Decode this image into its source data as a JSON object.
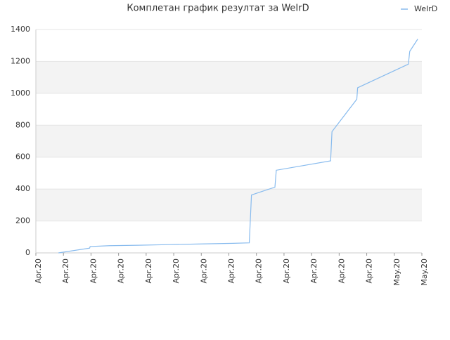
{
  "chart_data": {
    "type": "line",
    "title": "Комплетан график резултат за WeIrD",
    "x": [
      0.82,
      1.95,
      1.97,
      2.67,
      3.69,
      4.85,
      6.0,
      7.15,
      7.74,
      7.82,
      8.67,
      8.72,
      10.69,
      10.74,
      11.64,
      11.67,
      13.51,
      13.56,
      13.85
    ],
    "series": [
      {
        "name": "WeIrD",
        "color": "#88bbee",
        "values": [
          0,
          30,
          40,
          45,
          48,
          52,
          56,
          60,
          63,
          363,
          412,
          518,
          577,
          760,
          963,
          1035,
          1183,
          1263,
          1340
        ]
      }
    ],
    "xlim": [
      0,
      14
    ],
    "xticks": [
      {
        "value": 0,
        "label": "Apr.20"
      },
      {
        "value": 1,
        "label": "Apr.20"
      },
      {
        "value": 2,
        "label": "Apr.20"
      },
      {
        "value": 3,
        "label": "Apr.20"
      },
      {
        "value": 4,
        "label": "Apr.20"
      },
      {
        "value": 5,
        "label": "Apr.20"
      },
      {
        "value": 6,
        "label": "Apr.20"
      },
      {
        "value": 7,
        "label": "Apr.20"
      },
      {
        "value": 8,
        "label": "Apr.20"
      },
      {
        "value": 9,
        "label": "Apr.20"
      },
      {
        "value": 10,
        "label": "Apr.20"
      },
      {
        "value": 11,
        "label": "Apr.20"
      },
      {
        "value": 12,
        "label": "Apr.20"
      },
      {
        "value": 13,
        "label": "May.20"
      },
      {
        "value": 14,
        "label": "May.20"
      }
    ],
    "ylim": [
      0,
      1400
    ],
    "yticks": [
      0,
      200,
      400,
      600,
      800,
      1000,
      1200,
      1400
    ],
    "grid": true,
    "legend": "top-right"
  }
}
